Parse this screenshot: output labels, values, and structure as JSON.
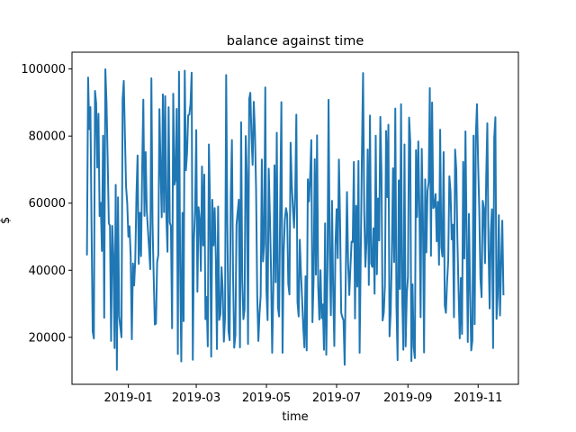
{
  "chart_data": {
    "type": "line",
    "title": "balance against time",
    "xlabel": "time",
    "ylabel": "$",
    "xlim": [
      "2018-11-13",
      "2019-12-06"
    ],
    "ylim": [
      6000,
      105000
    ],
    "xticks": [
      "2019-01-01",
      "2019-03-01",
      "2019-05-01",
      "2019-07-01",
      "2019-09-01",
      "2019-11-01"
    ],
    "xtick_labels": [
      "2019-01",
      "2019-03",
      "2019-05",
      "2019-07",
      "2019-09",
      "2019-11"
    ],
    "yticks": [
      20000,
      40000,
      60000,
      80000,
      100000
    ],
    "ytick_labels": [
      "20000",
      "40000",
      "60000",
      "80000",
      "100000"
    ],
    "grid": false,
    "legend": "none",
    "colors": {
      "line": "#1f77b4",
      "axes": "#000000",
      "background": "#ffffff"
    },
    "series": [
      {
        "x": [
          "2018-11-26",
          "2018-11-27",
          "2018-11-28",
          "2018-11-29",
          "2018-11-30",
          "2018-12-01",
          "2018-12-02",
          "2018-12-03",
          "2018-12-04",
          "2018-12-05",
          "2018-12-06",
          "2018-12-07",
          "2018-12-08",
          "2018-12-09",
          "2018-12-10",
          "2018-12-11",
          "2018-12-12",
          "2018-12-13",
          "2018-12-14",
          "2018-12-15",
          "2018-12-16",
          "2018-12-17",
          "2018-12-18",
          "2018-12-19",
          "2018-12-20",
          "2018-12-21",
          "2018-12-22",
          "2018-12-23",
          "2018-12-24",
          "2018-12-25",
          "2018-12-26",
          "2018-12-27",
          "2018-12-28",
          "2018-12-29",
          "2018-12-30",
          "2018-12-31",
          "2019-01-01",
          "2019-01-02",
          "2019-01-03",
          "2019-01-04",
          "2019-01-05",
          "2019-01-06",
          "2019-01-07",
          "2019-01-08",
          "2019-01-09",
          "2019-01-10",
          "2019-01-11",
          "2019-01-12",
          "2019-01-13",
          "2019-01-14",
          "2019-01-15",
          "2019-01-16",
          "2019-01-17",
          "2019-01-18",
          "2019-01-19",
          "2019-01-20",
          "2019-01-21",
          "2019-01-22",
          "2019-01-23",
          "2019-01-24",
          "2019-01-25",
          "2019-01-26",
          "2019-01-27",
          "2019-01-28",
          "2019-01-29",
          "2019-01-30",
          "2019-01-31",
          "2019-02-01",
          "2019-02-02",
          "2019-02-03",
          "2019-02-04",
          "2019-02-05",
          "2019-02-06",
          "2019-02-07",
          "2019-02-08",
          "2019-02-09",
          "2019-02-10",
          "2019-02-11",
          "2019-02-12",
          "2019-02-13",
          "2019-02-14",
          "2019-02-15",
          "2019-02-16",
          "2019-02-17",
          "2019-02-18",
          "2019-02-19",
          "2019-02-20",
          "2019-02-21",
          "2019-02-22",
          "2019-02-23",
          "2019-02-24",
          "2019-02-25",
          "2019-02-26",
          "2019-02-27",
          "2019-02-28",
          "2019-03-01",
          "2019-03-02",
          "2019-03-03",
          "2019-03-04",
          "2019-03-05",
          "2019-03-06",
          "2019-03-07",
          "2019-03-08",
          "2019-03-09",
          "2019-03-10",
          "2019-03-11",
          "2019-03-12",
          "2019-03-13",
          "2019-03-14",
          "2019-03-15",
          "2019-03-16",
          "2019-03-17",
          "2019-03-18",
          "2019-03-19",
          "2019-03-20",
          "2019-03-21",
          "2019-03-22",
          "2019-03-23",
          "2019-03-24",
          "2019-03-25",
          "2019-03-26",
          "2019-03-27",
          "2019-03-28",
          "2019-03-29",
          "2019-03-30",
          "2019-03-31",
          "2019-04-01",
          "2019-04-02",
          "2019-04-03",
          "2019-04-04",
          "2019-04-05",
          "2019-04-06",
          "2019-04-07",
          "2019-04-08",
          "2019-04-09",
          "2019-04-10",
          "2019-04-11",
          "2019-04-12",
          "2019-04-13",
          "2019-04-14",
          "2019-04-15",
          "2019-04-16",
          "2019-04-17",
          "2019-04-18",
          "2019-04-19",
          "2019-04-20",
          "2019-04-21",
          "2019-04-22",
          "2019-04-23",
          "2019-04-24",
          "2019-04-25",
          "2019-04-26",
          "2019-04-27",
          "2019-04-28",
          "2019-04-29",
          "2019-04-30",
          "2019-05-01",
          "2019-05-02",
          "2019-05-03",
          "2019-05-04",
          "2019-05-05",
          "2019-05-06",
          "2019-05-07",
          "2019-05-08",
          "2019-05-09",
          "2019-05-10",
          "2019-05-11",
          "2019-05-12",
          "2019-05-13",
          "2019-05-14",
          "2019-05-15",
          "2019-05-16",
          "2019-05-17",
          "2019-05-18",
          "2019-05-19",
          "2019-05-20",
          "2019-05-21",
          "2019-05-22",
          "2019-05-23",
          "2019-05-24",
          "2019-05-25",
          "2019-05-26",
          "2019-05-27",
          "2019-05-28",
          "2019-05-29",
          "2019-05-30",
          "2019-05-31",
          "2019-06-01",
          "2019-06-02",
          "2019-06-03",
          "2019-06-04",
          "2019-06-05",
          "2019-06-06",
          "2019-06-07",
          "2019-06-08",
          "2019-06-09",
          "2019-06-10",
          "2019-06-11",
          "2019-06-12",
          "2019-06-13",
          "2019-06-14",
          "2019-06-15",
          "2019-06-16",
          "2019-06-17",
          "2019-06-18",
          "2019-06-19",
          "2019-06-20",
          "2019-06-21",
          "2019-06-22",
          "2019-06-23",
          "2019-06-24",
          "2019-06-25",
          "2019-06-26",
          "2019-06-27",
          "2019-06-28",
          "2019-06-29",
          "2019-06-30",
          "2019-07-01",
          "2019-07-02",
          "2019-07-03",
          "2019-07-04",
          "2019-07-05",
          "2019-07-06",
          "2019-07-07",
          "2019-07-08",
          "2019-07-09",
          "2019-07-10",
          "2019-07-11",
          "2019-07-12",
          "2019-07-13",
          "2019-07-14",
          "2019-07-15",
          "2019-07-16",
          "2019-07-17",
          "2019-07-18",
          "2019-07-19",
          "2019-07-20",
          "2019-07-21",
          "2019-07-22",
          "2019-07-23",
          "2019-07-24",
          "2019-07-25",
          "2019-07-26",
          "2019-07-27",
          "2019-07-28",
          "2019-07-29",
          "2019-07-30",
          "2019-07-31",
          "2019-08-01",
          "2019-08-02",
          "2019-08-03",
          "2019-08-04",
          "2019-08-05",
          "2019-08-06",
          "2019-08-07",
          "2019-08-08",
          "2019-08-09",
          "2019-08-10",
          "2019-08-11",
          "2019-08-12",
          "2019-08-13",
          "2019-08-14",
          "2019-08-15",
          "2019-08-16",
          "2019-08-17",
          "2019-08-18",
          "2019-08-19",
          "2019-08-20",
          "2019-08-21",
          "2019-08-22",
          "2019-08-23",
          "2019-08-24",
          "2019-08-25",
          "2019-08-26",
          "2019-08-27",
          "2019-08-28",
          "2019-08-29",
          "2019-08-30",
          "2019-08-31",
          "2019-09-01",
          "2019-09-02",
          "2019-09-03",
          "2019-09-04",
          "2019-09-05",
          "2019-09-06",
          "2019-09-07",
          "2019-09-08",
          "2019-09-09",
          "2019-09-10",
          "2019-09-11",
          "2019-09-12",
          "2019-09-13",
          "2019-09-14",
          "2019-09-15",
          "2019-09-16",
          "2019-09-17",
          "2019-09-18",
          "2019-09-19",
          "2019-09-20",
          "2019-09-21",
          "2019-09-22",
          "2019-09-23",
          "2019-09-24",
          "2019-09-25",
          "2019-09-26",
          "2019-09-27",
          "2019-09-28",
          "2019-09-29",
          "2019-09-30",
          "2019-10-01",
          "2019-10-02",
          "2019-10-03",
          "2019-10-04",
          "2019-10-05",
          "2019-10-06",
          "2019-10-07",
          "2019-10-08",
          "2019-10-09",
          "2019-10-10",
          "2019-10-11",
          "2019-10-12",
          "2019-10-13",
          "2019-10-14",
          "2019-10-15",
          "2019-10-16",
          "2019-10-17",
          "2019-10-18",
          "2019-10-19",
          "2019-10-20",
          "2019-10-21",
          "2019-10-22",
          "2019-10-23",
          "2019-10-24",
          "2019-10-25",
          "2019-10-26",
          "2019-10-27",
          "2019-10-28",
          "2019-10-29",
          "2019-10-30",
          "2019-10-31",
          "2019-11-01",
          "2019-11-02",
          "2019-11-03",
          "2019-11-04",
          "2019-11-05",
          "2019-11-06",
          "2019-11-07",
          "2019-11-08",
          "2019-11-09",
          "2019-11-10",
          "2019-11-11",
          "2019-11-12",
          "2019-11-13",
          "2019-11-14",
          "2019-11-15",
          "2019-11-16",
          "2019-11-17",
          "2019-11-18",
          "2019-11-19",
          "2019-11-20",
          "2019-11-21",
          "2019-11-22",
          "2019-11-23"
        ],
        "y": [
          44694,
          97470,
          82108,
          88643,
          52542,
          21736,
          19652,
          93478,
          89811,
          70619,
          86640,
          56155,
          60111,
          45734,
          80129,
          25838,
          99897,
          90063,
          73115,
          54022,
          53211,
          18930,
          53230,
          44086,
          16787,
          65456,
          10327,
          61738,
          26209,
          23096,
          20029,
          91080,
          96461,
          80183,
          64908,
          60040,
          50000,
          53104,
          44213,
          19411,
          42010,
          35473,
          43201,
          62104,
          74216,
          41903,
          57103,
          44210,
          70402,
          90880,
          56203,
          75210,
          57805,
          52109,
          46503,
          40310,
          97207,
          54012,
          38102,
          23808,
          24106,
          42410,
          44511,
          88025,
          70301,
          55813,
          92408,
          57310,
          91903,
          56011,
          45506,
          88612,
          54215,
          53101,
          22702,
          92609,
          65507,
          67304,
          88105,
          15014,
          99203,
          40901,
          12806,
          57107,
          24806,
          99505,
          69802,
          74901,
          86203,
          86400,
          89510,
          98903,
          13302,
          49105,
          58000,
          81801,
          33609,
          58802,
          55110,
          39807,
          70913,
          47402,
          68506,
          25409,
          32012,
          17302,
          77502,
          59312,
          14204,
          61009,
          47403,
          58509,
          43806,
          16502,
          59001,
          25200,
          26813,
          40900,
          34010,
          18714,
          25705,
          98202,
          54500,
          22010,
          19100,
          62001,
          78810,
          38602,
          16904,
          20612,
          53604,
          57403,
          61021,
          17005,
          84103,
          36902,
          25400,
          28303,
          80004,
          68512,
          18002,
          91002,
          92904,
          80009,
          71410,
          90207,
          81402,
          64014,
          32503,
          18906,
          27104,
          32503,
          73001,
          42605,
          47802,
          94502,
          34100,
          25112,
          70300,
          56403,
          40102,
          15403,
          34305,
          71308,
          36410,
          81004,
          29011,
          26214,
          60506,
          90102,
          15407,
          45302,
          55011,
          58504,
          56612,
          35904,
          32805,
          78010,
          66005,
          58500,
          52703,
          62810,
          86400,
          30411,
          26214,
          49100,
          39312,
          31401,
          23108,
          17005,
          38209,
          16102,
          67104,
          60502,
          68103,
          78805,
          24502,
          37208,
          73109,
          38708,
          80201,
          35103,
          25301,
          40000,
          25706,
          29802,
          16303,
          54001,
          14805,
          38411,
          90800,
          45309,
          26602,
          60700,
          34009,
          17402,
          47600,
          58205,
          43604,
          73003,
          54610,
          27300,
          26001,
          25100,
          11806,
          40000,
          63304,
          42106,
          32611,
          40804,
          48508,
          48400,
          72304,
          25608,
          59207,
          35104,
          72602,
          15401,
          45402,
          75001,
          98806,
          57500,
          41002,
          48304,
          76003,
          35604,
          86105,
          42003,
          41010,
          52504,
          33006,
          80102,
          38807,
          61408,
          48900,
          85703,
          68701,
          25004,
          27402,
          35601,
          81509,
          61803,
          83404,
          20301,
          27500,
          44605,
          70402,
          42408,
          88205,
          29705,
          13203,
          66803,
          34404,
          89510,
          32001,
          16303,
          77504,
          17305,
          32804,
          38004,
          85504,
          78510,
          12903,
          35806,
          17003,
          13802,
          75801,
          55906,
          78402,
          57708,
          26003,
          76208,
          56000,
          15504,
          67106,
          45305,
          63505,
          66304,
          94303,
          44304,
          90003,
          58504,
          59100,
          62704,
          48600,
          60407,
          41605,
          81902,
          46903,
          44106,
          75205,
          29512,
          27301,
          36403,
          42805,
          68008,
          63506,
          49202,
          53601,
          26005,
          76001,
          70206,
          48802,
          33803,
          19705,
          37704,
          21002,
          72308,
          43508,
          81402,
          50006,
          18603,
          56800,
          34109,
          16104,
          19002,
          80107,
          23905,
          80001,
          89502,
          71807,
          58000,
          37407,
          32006,
          60704,
          58503,
          42100,
          67405,
          83808,
          47402,
          28604,
          51100,
          58200,
          16805,
          79603,
          85602,
          25502,
          32507,
          56403,
          26510,
          41807,
          54803,
          32804
        ]
      }
    ]
  }
}
